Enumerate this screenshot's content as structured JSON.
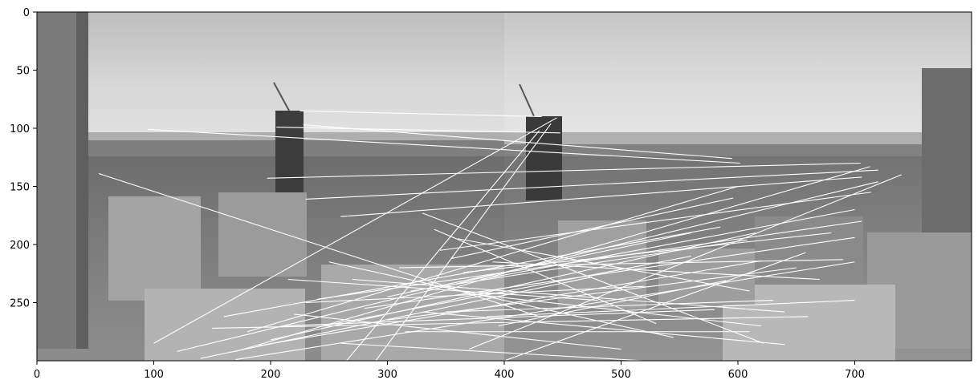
{
  "chart_data": {
    "type": "image",
    "title": "",
    "xlabel": "",
    "ylabel": "",
    "image": {
      "description_units": "pixel coordinates of a side-by-side grayscale panorama pair with feature-match lines",
      "width": 800,
      "height": 300,
      "split_x": 400
    },
    "xlim": [
      0,
      800
    ],
    "ylim": [
      300,
      0
    ],
    "x_ticks": [
      0,
      100,
      200,
      300,
      400,
      500,
      600,
      700
    ],
    "y_ticks": [
      0,
      50,
      100,
      150,
      200,
      250
    ],
    "x_tick_labels": [
      "0",
      "100",
      "200",
      "300",
      "400",
      "500",
      "600",
      "700"
    ],
    "y_tick_labels": [
      "0",
      "50",
      "100",
      "150",
      "200",
      "250"
    ],
    "match_lines": [
      [
        53,
        139,
        430,
        262
      ],
      [
        95,
        101,
        602,
        130
      ],
      [
        225,
        85,
        432,
        90
      ],
      [
        205,
        99,
        448,
        104
      ],
      [
        228,
        97,
        595,
        126
      ],
      [
        197,
        143,
        705,
        130
      ],
      [
        230,
        161,
        720,
        136
      ],
      [
        260,
        176,
        706,
        142
      ],
      [
        100,
        285,
        445,
        91
      ],
      [
        120,
        292,
        720,
        146
      ],
      [
        150,
        272,
        660,
        262
      ],
      [
        170,
        292,
        713,
        133
      ],
      [
        190,
        287,
        620,
        214
      ],
      [
        210,
        270,
        580,
        256
      ],
      [
        240,
        247,
        706,
        180
      ],
      [
        265,
        300,
        430,
        102
      ],
      [
        290,
        300,
        440,
        96
      ],
      [
        310,
        220,
        690,
        213
      ],
      [
        320,
        240,
        608,
        196
      ],
      [
        330,
        258,
        640,
        286
      ],
      [
        345,
        205,
        714,
        155
      ],
      [
        360,
        195,
        610,
        240
      ],
      [
        380,
        230,
        700,
        170
      ],
      [
        395,
        270,
        590,
        231
      ],
      [
        400,
        300,
        658,
        207
      ],
      [
        250,
        215,
        545,
        280
      ],
      [
        270,
        230,
        640,
        258
      ],
      [
        280,
        255,
        700,
        194
      ],
      [
        300,
        265,
        650,
        220
      ],
      [
        215,
        230,
        480,
        248
      ],
      [
        230,
        250,
        520,
        236
      ],
      [
        245,
        270,
        560,
        210
      ],
      [
        330,
        173,
        622,
        285
      ],
      [
        340,
        187,
        530,
        268
      ],
      [
        355,
        212,
        596,
        160
      ],
      [
        365,
        224,
        680,
        190
      ],
      [
        375,
        243,
        620,
        270
      ],
      [
        385,
        262,
        700,
        248
      ],
      [
        160,
        262,
        585,
        185
      ],
      [
        180,
        275,
        600,
        150
      ],
      [
        200,
        282,
        615,
        190
      ],
      [
        140,
        298,
        475,
        228
      ],
      [
        170,
        299,
        700,
        215
      ],
      [
        220,
        260,
        500,
        290
      ],
      [
        260,
        285,
        520,
        300
      ],
      [
        300,
        245,
        560,
        190
      ],
      [
        315,
        275,
        610,
        275
      ],
      [
        350,
        258,
        630,
        248
      ],
      [
        370,
        290,
        740,
        140
      ],
      [
        390,
        215,
        670,
        230
      ]
    ]
  }
}
